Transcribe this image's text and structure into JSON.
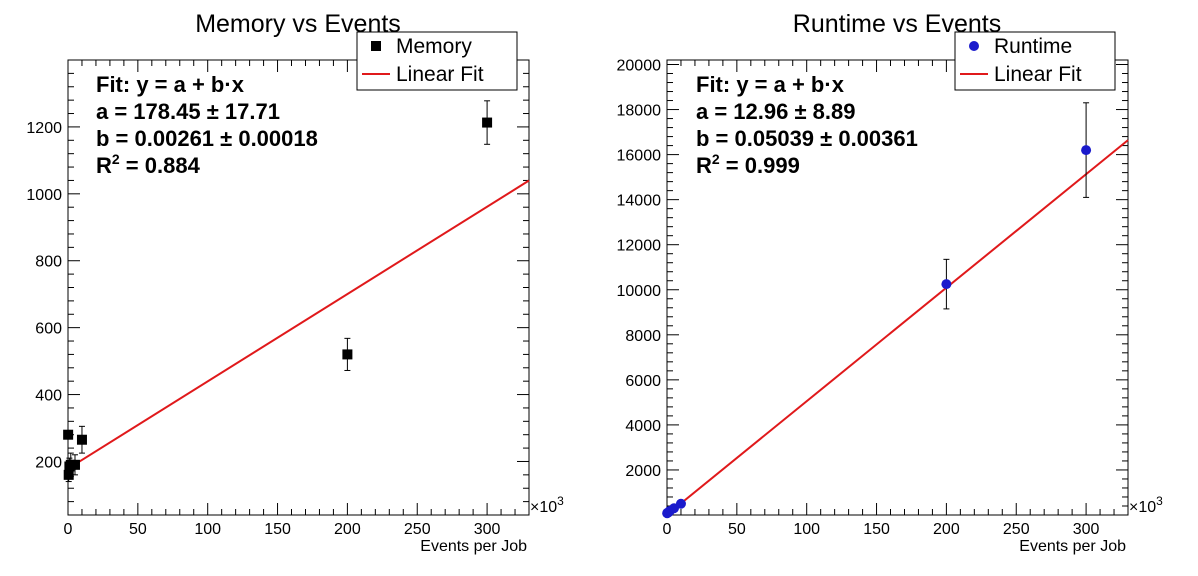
{
  "chart_data": [
    {
      "type": "scatter",
      "title": "Memory vs Events",
      "xlabel": "Events per Job",
      "ylabel": "",
      "x_multiplier_label": "×10",
      "x_multiplier_exp": "3",
      "xlim": [
        0,
        330
      ],
      "ylim": [
        40,
        1400
      ],
      "xticks": [
        0,
        50,
        100,
        150,
        200,
        250,
        300
      ],
      "yticks": [
        200,
        400,
        600,
        800,
        1000,
        1200
      ],
      "grid": false,
      "legend_position": "top-right",
      "legend": [
        {
          "label": "Memory",
          "kind": "marker"
        },
        {
          "label": "Linear Fit",
          "kind": "line"
        }
      ],
      "series": [
        {
          "name": "Memory",
          "marker": "square",
          "color": "#000000",
          "points": [
            {
              "x": 0.1,
              "y": 280,
              "err": 0
            },
            {
              "x": 0.5,
              "y": 160,
              "err": 20
            },
            {
              "x": 1,
              "y": 185,
              "err": 25
            },
            {
              "x": 2,
              "y": 190,
              "err": 35
            },
            {
              "x": 5,
              "y": 190,
              "err": 30
            },
            {
              "x": 10,
              "y": 265,
              "err": 40
            },
            {
              "x": 200,
              "y": 520,
              "err": 48
            },
            {
              "x": 300,
              "y": 1213,
              "err": 65
            }
          ]
        }
      ],
      "fit": {
        "intercept": 178.45,
        "slope": 0.00261,
        "x_scale": 1000,
        "color": "#e0191b",
        "x_start": 0,
        "x_end": 330
      },
      "annotations": [
        {
          "text": "Fit: y = a + b·x"
        },
        {
          "text": "a = 178.45 ± 17.71"
        },
        {
          "text": "b = 0.00261 ± 0.00018"
        },
        {
          "text": "R² = 0.884"
        }
      ]
    },
    {
      "type": "scatter",
      "title": "Runtime vs Events",
      "xlabel": "Events per Job",
      "ylabel": "",
      "x_multiplier_label": "×10",
      "x_multiplier_exp": "3",
      "xlim": [
        0,
        330
      ],
      "ylim": [
        0,
        20200
      ],
      "xticks": [
        0,
        50,
        100,
        150,
        200,
        250,
        300
      ],
      "yticks": [
        2000,
        4000,
        6000,
        8000,
        10000,
        12000,
        14000,
        16000,
        18000,
        20000
      ],
      "grid": false,
      "legend_position": "top-right",
      "legend": [
        {
          "label": "Runtime",
          "kind": "marker"
        },
        {
          "label": "Linear Fit",
          "kind": "line"
        }
      ],
      "series": [
        {
          "name": "Runtime",
          "marker": "circle",
          "color": "#1a1acc",
          "points": [
            {
              "x": 0.1,
              "y": 80,
              "err": 0
            },
            {
              "x": 0.5,
              "y": 100,
              "err": 0
            },
            {
              "x": 1,
              "y": 120,
              "err": 0
            },
            {
              "x": 2,
              "y": 180,
              "err": 0
            },
            {
              "x": 5,
              "y": 300,
              "err": 0
            },
            {
              "x": 10,
              "y": 500,
              "err": 0
            },
            {
              "x": 200,
              "y": 10250,
              "err": 1100
            },
            {
              "x": 300,
              "y": 16200,
              "err": 2100
            }
          ]
        }
      ],
      "fit": {
        "intercept": 12.96,
        "slope": 0.05039,
        "x_scale": 1000,
        "color": "#e0191b",
        "x_start": 0,
        "x_end": 330
      },
      "annotations": [
        {
          "text": "Fit: y = a + b·x"
        },
        {
          "text": "a = 12.96 ± 8.89"
        },
        {
          "text": "b = 0.05039 ± 0.00361"
        },
        {
          "text": "R² = 0.999"
        }
      ]
    }
  ]
}
